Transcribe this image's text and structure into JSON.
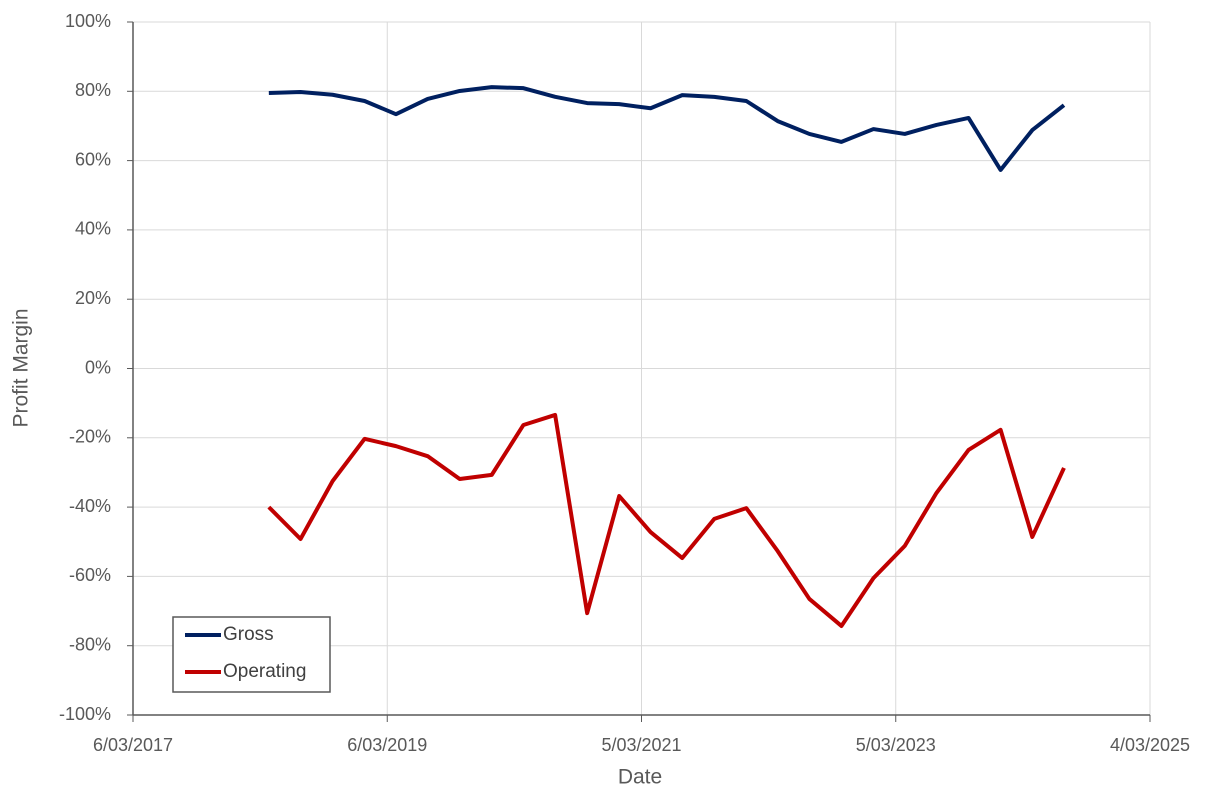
{
  "chart_data": {
    "type": "line",
    "x_label": "Date",
    "y_label": "Profit Margin",
    "x": [
      43190,
      43281,
      43373,
      43465,
      43555,
      43646,
      43738,
      43830,
      43921,
      44012,
      44104,
      44196,
      44286,
      44377,
      44469,
      44561,
      44651,
      44742,
      44834,
      44926,
      45016,
      45107,
      45199,
      45291,
      45382,
      45473
    ],
    "series": [
      {
        "name": "Gross",
        "color": "#002060",
        "values": [
          79.5,
          79.8,
          79,
          77.2,
          73.4,
          77.8,
          80.1,
          81.2,
          80.9,
          78.4,
          76.6,
          76.3,
          75.1,
          78.9,
          78.4,
          77.2,
          71.4,
          67.7,
          65.4,
          69.1,
          67.7,
          70.3,
          72.3,
          57.3,
          68.8,
          76
        ]
      },
      {
        "name": "Operating",
        "color": "#c00000",
        "values": [
          -40,
          -49.2,
          -32.5,
          -20.3,
          -22.4,
          -25.3,
          -31.9,
          -30.7,
          -16.3,
          -13.4,
          -70.6,
          -36.8,
          -47.2,
          -54.7,
          -43.4,
          -40.3,
          -52.7,
          -66.5,
          -74.3,
          -60.5,
          -51.2,
          -35.9,
          -23.5,
          -17.7,
          -48.6,
          -28.7
        ]
      }
    ],
    "xlim": [
      42800,
      45720
    ],
    "xticks": [
      {
        "value": 42800,
        "label": "6/03/2017"
      },
      {
        "value": 43530,
        "label": "6/03/2019"
      },
      {
        "value": 44260,
        "label": "5/03/2021"
      },
      {
        "value": 44990,
        "label": "5/03/2023"
      },
      {
        "value": 45720,
        "label": "4/03/2025"
      }
    ],
    "ylim": [
      -100,
      100
    ],
    "yticks": [
      {
        "value": -100,
        "label": "-100%"
      },
      {
        "value": -80,
        "label": "-80%"
      },
      {
        "value": -60,
        "label": "-60%"
      },
      {
        "value": -40,
        "label": "-40%"
      },
      {
        "value": -20,
        "label": "-20%"
      },
      {
        "value": 0,
        "label": "0%"
      },
      {
        "value": 20,
        "label": "20%"
      },
      {
        "value": 40,
        "label": "40%"
      },
      {
        "value": 60,
        "label": "60%"
      },
      {
        "value": 80,
        "label": "80%"
      },
      {
        "value": 100,
        "label": "100%"
      }
    ],
    "grid": true,
    "legend": "lower left"
  }
}
